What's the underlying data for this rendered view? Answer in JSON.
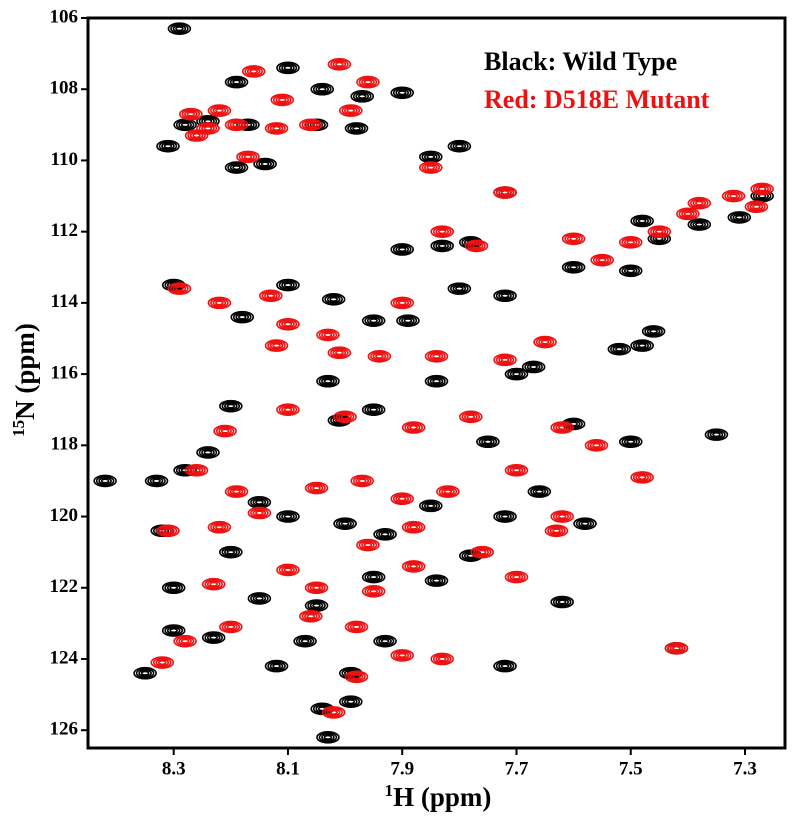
{
  "chart_data": {
    "type": "scatter",
    "x_label_sup": "1",
    "x_label": "H (ppm)",
    "y_label_sup": "15",
    "y_label": "N (ppm)",
    "xlim": [
      8.45,
      7.23
    ],
    "xticks": [
      8.3,
      8.1,
      7.9,
      7.7,
      7.5,
      7.3
    ],
    "ylim": [
      126.5,
      106
    ],
    "yticks": [
      106,
      108,
      110,
      112,
      114,
      116,
      118,
      120,
      122,
      124,
      126
    ],
    "series": [
      {
        "name": "Black: Wild Type",
        "color": "#000000",
        "x": [
          8.29,
          8.19,
          8.1,
          8.04,
          7.97,
          7.9,
          8.24,
          8.17,
          8.28,
          8.05,
          7.98,
          8.31,
          8.19,
          8.14,
          7.85,
          7.8,
          7.72,
          7.83,
          7.9,
          7.78,
          7.5,
          7.45,
          7.38,
          7.31,
          7.27,
          7.48,
          8.3,
          8.18,
          8.1,
          8.02,
          7.95,
          7.89,
          7.8,
          7.72,
          7.6,
          7.52,
          7.46,
          7.48,
          7.67,
          7.7,
          8.03,
          7.95,
          8.2,
          7.84,
          8.01,
          7.75,
          7.6,
          7.5,
          7.35,
          8.24,
          8.28,
          8.33,
          8.42,
          8.15,
          8.1,
          8.0,
          7.93,
          7.85,
          7.72,
          7.58,
          7.66,
          7.78,
          8.32,
          8.2,
          8.3,
          8.15,
          8.05,
          7.95,
          7.84,
          7.62,
          8.3,
          8.23,
          8.07,
          7.93,
          7.99,
          7.72,
          8.35,
          8.12,
          8.04,
          7.99,
          8.03,
          7.42
        ],
        "y": [
          106.3,
          107.8,
          107.4,
          108.0,
          108.2,
          108.1,
          108.9,
          109.0,
          109.0,
          109.0,
          109.1,
          109.6,
          110.2,
          110.1,
          109.9,
          109.6,
          110.9,
          112.4,
          112.5,
          112.3,
          113.1,
          112.2,
          111.8,
          111.6,
          111.0,
          111.7,
          113.5,
          114.4,
          113.5,
          113.9,
          114.5,
          114.5,
          113.6,
          113.8,
          113.0,
          115.3,
          114.8,
          115.2,
          115.8,
          116.0,
          116.2,
          117.0,
          116.9,
          116.2,
          117.3,
          117.9,
          117.4,
          117.9,
          117.7,
          118.2,
          118.7,
          119.0,
          119.0,
          119.6,
          120.0,
          120.2,
          120.5,
          119.7,
          120.0,
          120.2,
          119.3,
          121.1,
          120.4,
          121.0,
          122.0,
          122.3,
          122.5,
          121.7,
          121.8,
          122.4,
          123.2,
          123.4,
          123.5,
          123.5,
          124.4,
          124.2,
          124.4,
          124.2,
          125.4,
          125.2,
          126.2,
          123.7
        ]
      },
      {
        "name": "Red: D518E Mutant",
        "color": "#ee1111",
        "x": [
          8.16,
          8.01,
          7.96,
          8.11,
          8.22,
          8.27,
          8.19,
          8.12,
          8.06,
          8.17,
          8.26,
          8.24,
          7.99,
          7.85,
          7.72,
          7.83,
          7.77,
          7.6,
          7.55,
          7.5,
          7.45,
          7.4,
          7.32,
          7.27,
          7.28,
          7.38,
          8.29,
          8.22,
          8.13,
          8.1,
          8.03,
          8.01,
          7.94,
          7.84,
          7.72,
          7.65,
          7.9,
          8.12,
          8.0,
          8.1,
          7.88,
          7.78,
          7.62,
          7.56,
          7.48,
          8.21,
          8.26,
          8.19,
          8.15,
          8.05,
          7.97,
          7.9,
          7.82,
          7.7,
          7.62,
          7.63,
          8.31,
          8.22,
          8.1,
          7.96,
          7.88,
          7.76,
          7.7,
          8.23,
          8.05,
          7.95,
          7.88,
          8.2,
          8.28,
          8.06,
          7.98,
          7.9,
          7.83,
          7.98,
          8.32,
          8.02,
          7.42
        ],
        "y": [
          107.5,
          107.3,
          107.8,
          108.3,
          108.6,
          108.7,
          109.0,
          109.1,
          109.0,
          109.9,
          109.3,
          109.1,
          108.6,
          110.2,
          110.9,
          112.0,
          112.4,
          112.2,
          112.8,
          112.3,
          112.0,
          111.5,
          111.0,
          110.8,
          111.3,
          111.2,
          113.6,
          114.0,
          113.8,
          114.6,
          114.9,
          115.4,
          115.5,
          115.5,
          115.6,
          115.1,
          114.0,
          115.2,
          117.2,
          117.0,
          117.5,
          117.2,
          117.5,
          118.0,
          118.9,
          117.6,
          118.7,
          119.3,
          119.9,
          119.2,
          119.0,
          119.5,
          119.3,
          118.7,
          120.0,
          120.4,
          120.4,
          120.3,
          121.5,
          120.8,
          120.3,
          121.0,
          121.7,
          121.9,
          122.0,
          122.1,
          121.4,
          123.1,
          123.5,
          122.8,
          123.1,
          123.9,
          124.0,
          124.5,
          124.1,
          125.5,
          123.7
        ]
      }
    ]
  }
}
